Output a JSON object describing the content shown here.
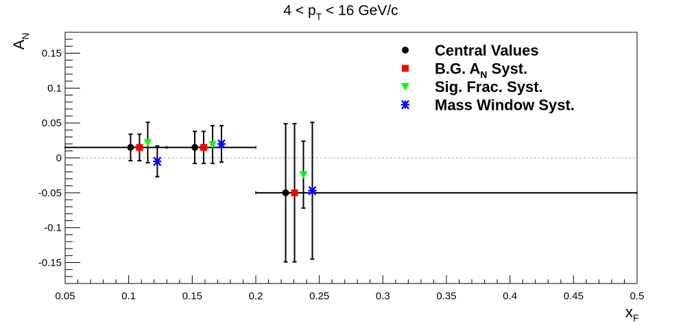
{
  "chart_data": {
    "type": "scatter",
    "title": "4 < pT < 16 GeV/c",
    "title_parts": {
      "pre": "4 < p",
      "sub": "T",
      "post": " < 16 GeV/c"
    },
    "xlabel": "xF",
    "xlabel_parts": {
      "main": "x",
      "sub": "F"
    },
    "ylabel": "AN",
    "ylabel_parts": {
      "main": "A",
      "sub": "N"
    },
    "xlim": [
      0.05,
      0.5
    ],
    "ylim": [
      -0.18,
      0.18
    ],
    "x_ticks": [
      0.05,
      0.1,
      0.15,
      0.2,
      0.25,
      0.3,
      0.35,
      0.4,
      0.45,
      0.5
    ],
    "x_tick_labels": [
      "0.05",
      "0.1",
      "0.15",
      "0.2",
      "0.25",
      "0.3",
      "0.35",
      "0.4",
      "0.45",
      "0.5"
    ],
    "y_ticks": [
      -0.15,
      -0.1,
      -0.05,
      0,
      0.05,
      0.1,
      0.15
    ],
    "y_tick_labels": [
      "-0.15",
      "-0.1",
      "-0.05",
      "0",
      "0.05",
      "0.1",
      "0.15"
    ],
    "reference_line_y": 0,
    "legend_position": "top-right",
    "series": [
      {
        "name": "Central Values",
        "legend_parts": {
          "pre": "Central Values",
          "sub": "",
          "post": ""
        },
        "marker": "circle",
        "color": "#000000",
        "x": [
          0.1015,
          0.152,
          0.2235
        ],
        "y": [
          0.015,
          0.015,
          -0.05
        ],
        "yerr": [
          0.019,
          0.023,
          0.099
        ],
        "xrange": [
          [
            0.05,
            0.13
          ],
          [
            0.13,
            0.2
          ],
          [
            0.2,
            0.5
          ]
        ]
      },
      {
        "name": "B.G. AN Syst.",
        "legend_parts": {
          "pre": "B.G. A",
          "sub": "N",
          "post": " Syst."
        },
        "marker": "square",
        "color": "#ff0000",
        "x": [
          0.1085,
          0.159,
          0.2305
        ],
        "y": [
          0.015,
          0.015,
          -0.05
        ],
        "yerr": [
          0.019,
          0.023,
          0.099
        ]
      },
      {
        "name": "Sig. Frac. Syst.",
        "legend_parts": {
          "pre": "Sig. Frac. Syst.",
          "sub": "",
          "post": ""
        },
        "marker": "triangle-down",
        "color": "#00ff00",
        "x": [
          0.115,
          0.166,
          0.2375
        ],
        "y": [
          0.022,
          0.019,
          -0.024
        ],
        "yerr": [
          0.029,
          0.027,
          0.048
        ]
      },
      {
        "name": "Mass Window Syst.",
        "legend_parts": {
          "pre": "Mass Window Syst.",
          "sub": "",
          "post": ""
        },
        "marker": "star",
        "color": "#0000ff",
        "x": [
          0.1225,
          0.173,
          0.2445
        ],
        "y": [
          -0.005,
          0.02,
          -0.047
        ],
        "yerr": [
          0.022,
          0.026,
          0.098
        ]
      }
    ]
  }
}
